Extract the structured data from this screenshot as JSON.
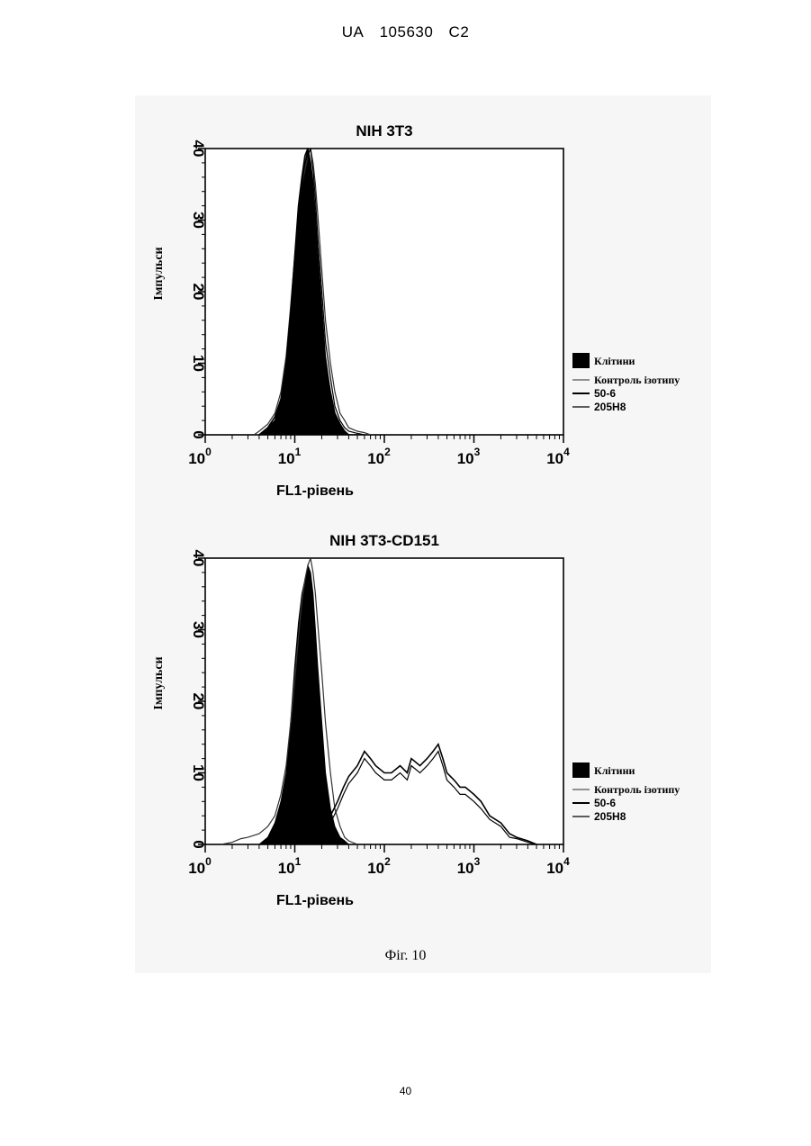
{
  "header": {
    "country": "UA",
    "number": "105630",
    "kind": "C2"
  },
  "caption": "Фіг. 10",
  "page_number": "40",
  "colors": {
    "ink": "#000000",
    "paper": "#ffffff",
    "scan_gray": "#f6f6f6"
  },
  "chart_data": [
    {
      "type": "area",
      "title": "NIH 3T3",
      "xlabel": "FL1-рівень",
      "ylabel": "Імпульси",
      "x_scale": "log",
      "xlim": [
        1,
        10000
      ],
      "ylim": [
        0,
        40
      ],
      "x_tick_labels": [
        {
          "base": "10",
          "exp": "0"
        },
        {
          "base": "10",
          "exp": "1"
        },
        {
          "base": "10",
          "exp": "2"
        },
        {
          "base": "10",
          "exp": "3"
        },
        {
          "base": "10",
          "exp": "4"
        }
      ],
      "y_ticks": [
        "0",
        "10",
        "20",
        "30",
        "40"
      ],
      "legend": {
        "placement": "right",
        "entries": [
          "Клітини",
          "Контроль ізотипу",
          "50-6",
          "205H8"
        ]
      },
      "series": [
        {
          "name": "Клітини",
          "style": "filled",
          "x": [
            4,
            5,
            6,
            7,
            8,
            9,
            10,
            11,
            12,
            13,
            14,
            15,
            16,
            17,
            18,
            20,
            22,
            25,
            28,
            32,
            36,
            40,
            50
          ],
          "y": [
            0,
            1,
            2,
            5,
            9,
            16,
            24,
            31,
            36,
            38,
            40,
            38,
            35,
            31,
            26,
            18,
            11,
            6,
            3,
            1.5,
            0.5,
            0,
            0
          ]
        },
        {
          "name": "Контроль ізотипу",
          "style": "line",
          "x": [
            3.5,
            4,
            5,
            6,
            7,
            8,
            9,
            10,
            11,
            12,
            13,
            14,
            15,
            16,
            17,
            18,
            20,
            22,
            25,
            28,
            32,
            36,
            40,
            50,
            60,
            70
          ],
          "y": [
            0,
            0.5,
            1.5,
            3,
            6,
            11,
            18,
            25,
            31,
            35,
            37,
            39,
            40,
            38,
            35,
            31,
            23,
            16,
            10,
            6,
            3,
            2,
            1,
            0.5,
            0.3,
            0
          ]
        },
        {
          "name": "50-6",
          "style": "line",
          "x": [
            4,
            5,
            6,
            7,
            8,
            9,
            10,
            11,
            12,
            13,
            14,
            15,
            16,
            17,
            18,
            20,
            22,
            25,
            28,
            32,
            36,
            40,
            50
          ],
          "y": [
            0,
            1,
            2.5,
            5,
            10,
            17,
            25,
            32,
            36,
            39,
            40,
            38,
            35,
            30,
            25,
            17,
            10,
            6,
            3,
            1.5,
            0.5,
            0,
            0
          ]
        },
        {
          "name": "205H8",
          "style": "line",
          "x": [
            4,
            5,
            6,
            7,
            8,
            9,
            10,
            11,
            12,
            13,
            14,
            15,
            16,
            17,
            18,
            20,
            22,
            25,
            28,
            32,
            36,
            40,
            50,
            60
          ],
          "y": [
            0,
            1,
            2,
            4,
            8,
            14,
            22,
            30,
            35,
            38,
            39,
            40,
            37,
            33,
            28,
            20,
            13,
            8,
            4,
            2,
            1,
            0.5,
            0.2,
            0
          ]
        }
      ]
    },
    {
      "type": "area",
      "title": "NIH 3T3-CD151",
      "xlabel": "FL1-рівень",
      "ylabel": "Імпульси",
      "x_scale": "log",
      "xlim": [
        1,
        10000
      ],
      "ylim": [
        0,
        40
      ],
      "x_tick_labels": [
        {
          "base": "10",
          "exp": "0"
        },
        {
          "base": "10",
          "exp": "1"
        },
        {
          "base": "10",
          "exp": "2"
        },
        {
          "base": "10",
          "exp": "3"
        },
        {
          "base": "10",
          "exp": "4"
        }
      ],
      "y_ticks": [
        "0",
        "10",
        "20",
        "30",
        "40"
      ],
      "legend": {
        "placement": "right",
        "entries": [
          "Клітини",
          "Контроль ізотипу",
          "50-6",
          "205H8"
        ]
      },
      "series": [
        {
          "name": "Клітини",
          "style": "filled",
          "x": [
            4,
            5,
            6,
            7,
            8,
            9,
            10,
            11,
            12,
            13,
            14,
            15,
            16,
            17,
            18,
            20,
            22,
            25,
            28,
            32,
            36,
            40,
            50
          ],
          "y": [
            0,
            1,
            3,
            6,
            10,
            17,
            25,
            31,
            35,
            37,
            39,
            38,
            35,
            30,
            25,
            17,
            10,
            5,
            2.5,
            1,
            0.5,
            0,
            0
          ]
        },
        {
          "name": "Контроль ізотипу",
          "style": "line",
          "x": [
            1.5,
            2,
            2.5,
            3,
            4,
            5,
            6,
            7,
            8,
            9,
            10,
            11,
            12,
            13,
            14,
            15,
            16,
            17,
            18,
            20,
            22,
            25,
            28,
            32,
            36,
            40,
            50
          ],
          "y": [
            0,
            0.3,
            0.8,
            1,
            1.5,
            2.5,
            4,
            7,
            11,
            17,
            23,
            29,
            34,
            37,
            39,
            40,
            38,
            35,
            31,
            24,
            17,
            10,
            5,
            2.5,
            1,
            0.5,
            0
          ]
        },
        {
          "name": "50-6",
          "style": "line",
          "x": [
            15,
            20,
            25,
            30,
            35,
            40,
            50,
            60,
            70,
            80,
            100,
            120,
            150,
            180,
            200,
            250,
            300,
            350,
            400,
            450,
            500,
            600,
            700,
            800,
            1000,
            1200,
            1500,
            2000,
            2500,
            3000,
            4000,
            5000
          ],
          "y": [
            0,
            2,
            4,
            6,
            8,
            9.5,
            11,
            13,
            12,
            11,
            10,
            10,
            11,
            10,
            12,
            11,
            12,
            13,
            14,
            12,
            10,
            9,
            8,
            8,
            7,
            6,
            4,
            3,
            1.5,
            1,
            0.5,
            0
          ]
        },
        {
          "name": "205H8",
          "style": "line",
          "x": [
            15,
            20,
            25,
            30,
            35,
            40,
            50,
            60,
            70,
            80,
            100,
            120,
            150,
            180,
            200,
            250,
            300,
            350,
            400,
            450,
            500,
            600,
            700,
            800,
            1000,
            1200,
            1500,
            2000,
            2500,
            3000,
            4000,
            5000
          ],
          "y": [
            0,
            1.5,
            3,
            5,
            7,
            8.5,
            10,
            12,
            11,
            10,
            9,
            9,
            10,
            9,
            11,
            10,
            11,
            12,
            13,
            11,
            9,
            8,
            7,
            7,
            6,
            5,
            3.5,
            2.5,
            1,
            0.8,
            0.3,
            0
          ]
        }
      ]
    }
  ]
}
